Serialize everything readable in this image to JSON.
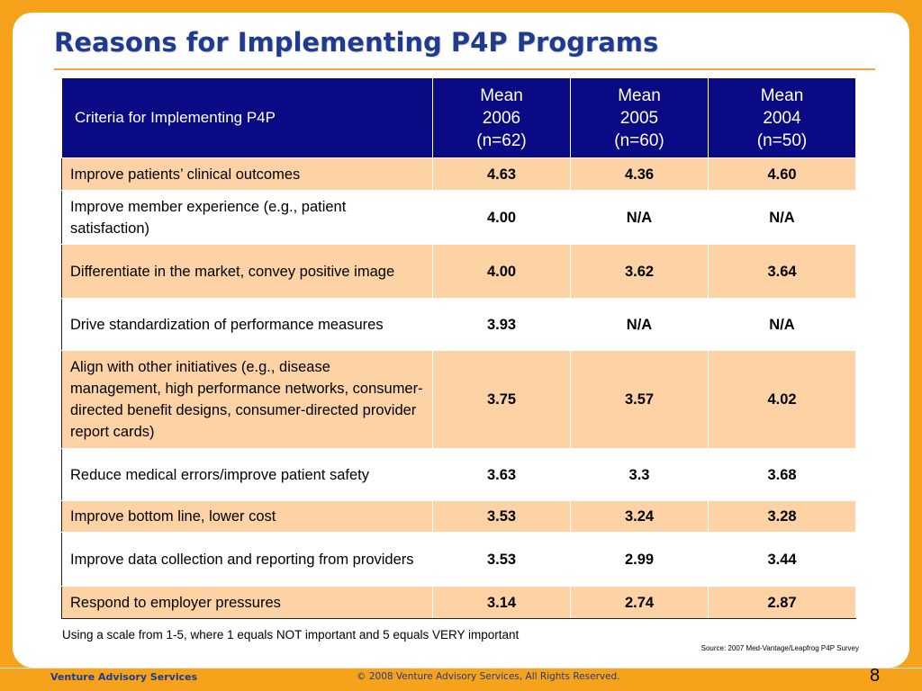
{
  "title": "Reasons for Implementing P4P Programs",
  "table": {
    "header": {
      "criteria": "Criteria for Implementing P4P",
      "years": [
        {
          "line1": "Mean",
          "line2": "2006",
          "line3": "(n=62)"
        },
        {
          "line1": "Mean",
          "line2": "2005",
          "line3": "(n=60)"
        },
        {
          "line1": "Mean",
          "line2": "2004",
          "line3": "(n=50)"
        }
      ]
    },
    "rows": [
      {
        "criterion": "Improve patients’ clinical outcomes",
        "m2006": "4.63",
        "m2005": "4.36",
        "m2004": "4.60"
      },
      {
        "criterion": "Improve member experience (e.g., patient satisfaction)",
        "m2006": "4.00",
        "m2005": "N/A",
        "m2004": "N/A"
      },
      {
        "criterion": "Differentiate in the market, convey positive image",
        "m2006": "4.00",
        "m2005": "3.62",
        "m2004": "3.64"
      },
      {
        "criterion": "Drive standardization of performance measures",
        "m2006": "3.93",
        "m2005": "N/A",
        "m2004": "N/A"
      },
      {
        "criterion": "Align with other initiatives (e.g., disease management, high performance networks, consumer-directed benefit designs, consumer-directed provider report cards)",
        "m2006": "3.75",
        "m2005": "3.57",
        "m2004": "4.02"
      },
      {
        "criterion": "Reduce medical errors/improve patient safety",
        "m2006": "3.63",
        "m2005": "3.3",
        "m2004": "3.68"
      },
      {
        "criterion": "Improve bottom line, lower cost",
        "m2006": "3.53",
        "m2005": "3.24",
        "m2004": "3.28"
      },
      {
        "criterion": "Improve data collection and reporting from providers",
        "m2006": "3.53",
        "m2005": "2.99",
        "m2004": "3.44"
      },
      {
        "criterion": "Respond to employer pressures",
        "m2006": "3.14",
        "m2005": "2.74",
        "m2004": "2.87"
      }
    ]
  },
  "scale_note": "Using a scale from 1-5, where 1 equals NOT important and 5 equals VERY important",
  "source": "Source:  2007 Med-Vantage/Leapfrog  P4P Survey",
  "footer": {
    "brand": "Venture Advisory Services",
    "copyright": "© 2008 Venture Advisory Services, All Rights Reserved.",
    "page": "8"
  },
  "colors": {
    "header_bg": "#0a0a84",
    "row_shade": "#fdd3a6",
    "title": "#1f3b8f",
    "frame": "#f6a21a"
  }
}
